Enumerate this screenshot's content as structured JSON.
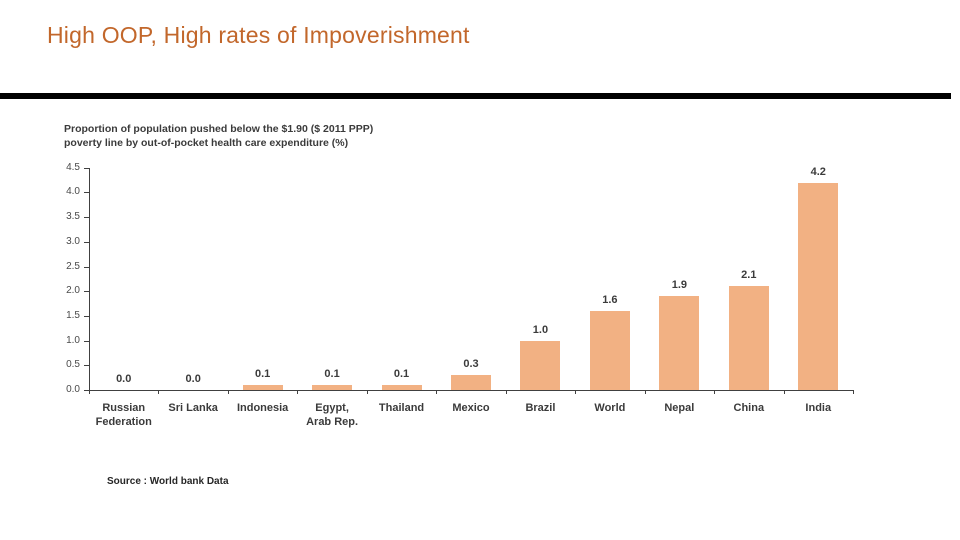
{
  "slide": {
    "title": "High OOP, High rates of Impoverishment",
    "title_color": "#c2672b"
  },
  "chart_data": {
    "type": "bar",
    "title": "Proportion of population pushed below the $1.90 ($ 2011 PPP)\npoverty line by out-of-pocket health care expenditure (%)",
    "categories": [
      "Russian\nFederation",
      "Sri Lanka",
      "Indonesia",
      "Egypt,\nArab Rep.",
      "Thailand",
      "Mexico",
      "Brazil",
      "World",
      "Nepal",
      "China",
      "India"
    ],
    "values": [
      0.0,
      0.0,
      0.1,
      0.1,
      0.1,
      0.3,
      1.0,
      1.6,
      1.9,
      2.1,
      4.2
    ],
    "xlabel": "",
    "ylabel": "",
    "ylim": [
      0,
      4.5
    ],
    "yticks": [
      0.0,
      0.5,
      1.0,
      1.5,
      2.0,
      2.5,
      3.0,
      3.5,
      4.0,
      4.5
    ],
    "grid": false,
    "legend": false,
    "data_labels": true,
    "bar_color": "#f2b183",
    "source": "Source : World bank Data"
  }
}
